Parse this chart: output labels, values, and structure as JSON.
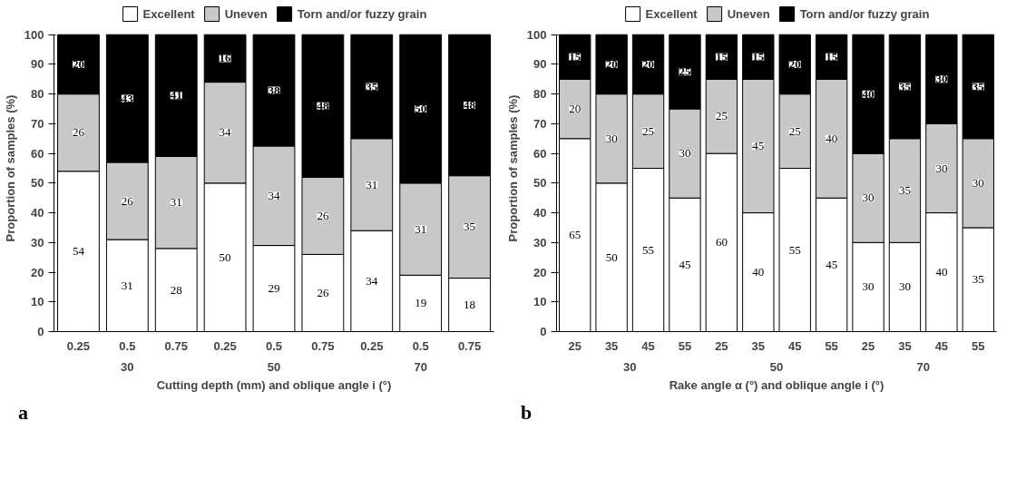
{
  "chart_data": [
    {
      "type": "bar",
      "stacked": true,
      "subtitle": "a",
      "xlabel": "Cutting depth (mm) and oblique angle i (°)",
      "ylabel": "Proportion of samples (%)",
      "categories": [
        "0.25",
        "0.5",
        "0.75",
        "0.25",
        "0.5",
        "0.75",
        "0.25",
        "0.5",
        "0.75"
      ],
      "annotations": [
        "30",
        "50",
        "70"
      ],
      "ylim": [
        0,
        100
      ],
      "yticks": [
        0,
        10,
        20,
        30,
        40,
        50,
        60,
        70,
        80,
        90,
        100
      ],
      "legend": "top",
      "grid": false,
      "series": [
        {
          "name": "Excellent",
          "color": "#ffffff",
          "values": [
            54,
            31,
            28,
            50,
            29,
            26,
            34,
            19,
            18
          ],
          "value_labels": [
            "54",
            "31",
            "28",
            "50",
            "29",
            "26",
            "34",
            "19",
            "18"
          ]
        },
        {
          "name": "Uneven",
          "color": "#c8c8c8",
          "values": [
            26,
            26,
            31,
            34,
            33.5,
            26,
            31,
            31,
            34.5
          ],
          "value_labels": [
            "26",
            "26",
            "31",
            "34",
            "34",
            "26",
            "31",
            "31",
            "35"
          ]
        },
        {
          "name": "Torn and/or fuzzy grain",
          "color": "#000000",
          "values": [
            20,
            43,
            41,
            16,
            37.5,
            48,
            35,
            50,
            47.5
          ],
          "value_labels": [
            "20",
            "43",
            "41",
            "16",
            "38",
            "48",
            "35",
            "50",
            "48"
          ]
        }
      ]
    },
    {
      "type": "bar",
      "stacked": true,
      "subtitle": "b",
      "xlabel": "Rake angle α (°) and oblique angle i (°)",
      "ylabel": "Proportion of samples (%)",
      "categories": [
        "25",
        "35",
        "45",
        "55",
        "25",
        "35",
        "45",
        "55",
        "25",
        "35",
        "45",
        "55"
      ],
      "annotations": [
        "30",
        "50",
        "70"
      ],
      "ylim": [
        0,
        100
      ],
      "yticks": [
        0,
        10,
        20,
        30,
        40,
        50,
        60,
        70,
        80,
        90,
        100
      ],
      "legend": "top",
      "grid": false,
      "data_labels": true,
      "series": [
        {
          "name": "Excellent",
          "color": "#ffffff",
          "values": [
            65,
            50,
            55,
            45,
            60,
            40,
            55,
            45,
            30,
            30,
            40,
            35
          ]
        },
        {
          "name": "Uneven",
          "color": "#c8c8c8",
          "values": [
            20,
            30,
            25,
            30,
            25,
            45,
            25,
            40,
            30,
            35,
            30,
            30
          ]
        },
        {
          "name": "Torn and/or fuzzy grain",
          "color": "#000000",
          "values": [
            15,
            20,
            20,
            25,
            15,
            15,
            20,
            15,
            40,
            35,
            30,
            35
          ]
        }
      ]
    }
  ]
}
